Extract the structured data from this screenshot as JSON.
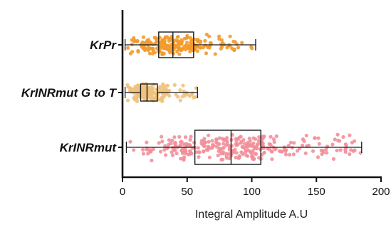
{
  "chart_data": {
    "type": "box-swarm",
    "orientation": "horizontal",
    "title": "",
    "xlabel": "Integral Amplitude A.U",
    "ylabel": "",
    "xlim": [
      0,
      200
    ],
    "xticks": [
      0,
      50,
      100,
      150,
      200
    ],
    "grid": false,
    "legend": "none",
    "categories": [
      "KrPr",
      "KrINRmut G to T",
      "KrINRmut"
    ],
    "series": [
      {
        "name": "KrPr",
        "color": "#F39A2C",
        "box": {
          "min": 2,
          "q1": 28,
          "median": 39,
          "q3": 55,
          "max": 103
        },
        "n_points": 230
      },
      {
        "name": "KrINRmut G to T",
        "color": "#F0C27E",
        "box": {
          "min": 2,
          "q1": 14,
          "median": 19,
          "q3": 27,
          "max": 58
        },
        "n_points": 190
      },
      {
        "name": "KrINRmut",
        "color": "#F2909A",
        "box": {
          "min": 3,
          "q1": 56,
          "median": 84,
          "q3": 107,
          "max": 185
        },
        "n_points": 320
      }
    ]
  }
}
